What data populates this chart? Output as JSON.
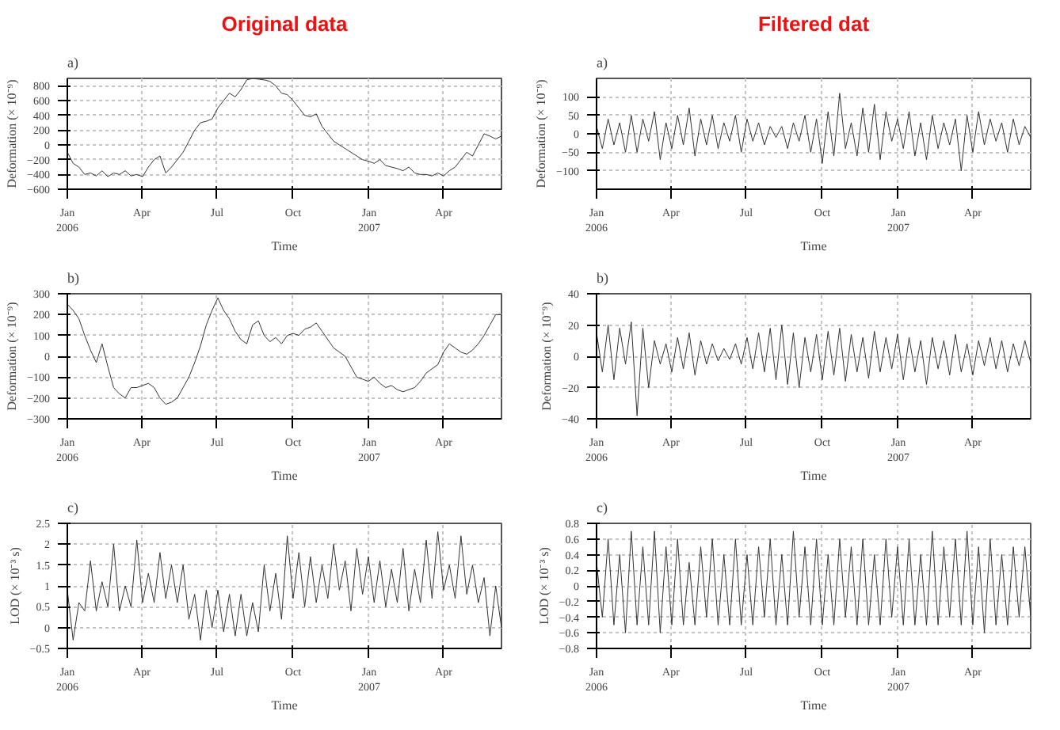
{
  "chart_data": [
    {
      "type": "line",
      "title": "Original data",
      "annotations": [
        "a)"
      ],
      "xlabel": "Time",
      "ylabel": "Deformation (× 10⁻⁹)",
      "color": "#333333",
      "grid": true,
      "line_style": "solid",
      "xlim": [
        "2006-01-01",
        "2007-06-10"
      ],
      "xticks": [
        {
          "value": "2006-01-01",
          "label": "Jan\n2006"
        },
        {
          "value": "2006-04-01",
          "label": "Apr"
        },
        {
          "value": "2006-07-01",
          "label": "Jul"
        },
        {
          "value": "2006-10-01",
          "label": "Oct"
        },
        {
          "value": "2007-01-01",
          "label": "Jan\n2007"
        },
        {
          "value": "2007-04-01",
          "label": "Apr"
        }
      ],
      "ylim": [
        -600,
        900
      ],
      "yticks": [
        -600,
        -400,
        -200,
        0,
        200,
        400,
        600,
        800
      ],
      "x": [
        "2006-01-01",
        "2006-01-08",
        "2006-01-15",
        "2006-01-22",
        "2006-01-29",
        "2006-02-05",
        "2006-02-12",
        "2006-02-19",
        "2006-02-26",
        "2006-03-05",
        "2006-03-12",
        "2006-03-19",
        "2006-03-26",
        "2006-04-02",
        "2006-04-09",
        "2006-04-16",
        "2006-04-23",
        "2006-04-30",
        "2006-05-07",
        "2006-05-14",
        "2006-05-21",
        "2006-05-28",
        "2006-06-04",
        "2006-06-11",
        "2006-06-18",
        "2006-06-25",
        "2006-07-02",
        "2006-07-09",
        "2006-07-16",
        "2006-07-23",
        "2006-07-30",
        "2006-08-06",
        "2006-08-13",
        "2006-08-20",
        "2006-08-27",
        "2006-09-03",
        "2006-09-10",
        "2006-09-17",
        "2006-09-24",
        "2006-10-01",
        "2006-10-08",
        "2006-10-15",
        "2006-10-22",
        "2006-10-29",
        "2006-11-05",
        "2006-11-12",
        "2006-11-19",
        "2006-11-26",
        "2006-12-03",
        "2006-12-10",
        "2006-12-17",
        "2006-12-24",
        "2006-12-31",
        "2007-01-07",
        "2007-01-14",
        "2007-01-21",
        "2007-01-28",
        "2007-02-04",
        "2007-02-11",
        "2007-02-18",
        "2007-02-25",
        "2007-03-04",
        "2007-03-11",
        "2007-03-18",
        "2007-03-25",
        "2007-04-01",
        "2007-04-08",
        "2007-04-15",
        "2007-04-22",
        "2007-04-29",
        "2007-05-06",
        "2007-05-13",
        "2007-05-20",
        "2007-05-27",
        "2007-06-03",
        "2007-06-10"
      ],
      "values": [
        -100,
        -250,
        -300,
        -400,
        -380,
        -420,
        -350,
        -430,
        -380,
        -400,
        -350,
        -420,
        -400,
        -430,
        -300,
        -200,
        -150,
        -380,
        -300,
        -200,
        -100,
        50,
        200,
        300,
        320,
        350,
        500,
        600,
        700,
        650,
        750,
        880,
        900,
        890,
        880,
        860,
        800,
        700,
        680,
        600,
        500,
        400,
        380,
        420,
        250,
        150,
        50,
        0,
        -50,
        -100,
        -150,
        -200,
        -220,
        -250,
        -200,
        -280,
        -300,
        -320,
        -350,
        -300,
        -380,
        -400,
        -400,
        -420,
        -380,
        -420,
        -350,
        -300,
        -200,
        -100,
        -150,
        0,
        150,
        120,
        80,
        120
      ]
    },
    {
      "type": "line",
      "annotations": [
        "b)"
      ],
      "xlabel": "Time",
      "ylabel": "Deformation (× 10⁻⁹)",
      "color": "#333333",
      "grid": true,
      "line_style": "solid",
      "xlim": [
        "2006-01-01",
        "2007-06-10"
      ],
      "xticks": [
        {
          "value": "2006-01-01",
          "label": "Jan\n2006"
        },
        {
          "value": "2006-04-01",
          "label": "Apr"
        },
        {
          "value": "2006-07-01",
          "label": "Jul"
        },
        {
          "value": "2006-10-01",
          "label": "Oct"
        },
        {
          "value": "2007-01-01",
          "label": "Jan\n2007"
        },
        {
          "value": "2007-04-01",
          "label": "Apr"
        }
      ],
      "ylim": [
        -300,
        300
      ],
      "yticks": [
        -300,
        -200,
        -100,
        0,
        100,
        200,
        300
      ],
      "x": [
        "2006-01-01",
        "2006-01-08",
        "2006-01-15",
        "2006-01-22",
        "2006-01-29",
        "2006-02-05",
        "2006-02-12",
        "2006-02-19",
        "2006-02-26",
        "2006-03-05",
        "2006-03-12",
        "2006-03-19",
        "2006-03-26",
        "2006-04-02",
        "2006-04-09",
        "2006-04-16",
        "2006-04-23",
        "2006-04-30",
        "2006-05-07",
        "2006-05-14",
        "2006-05-21",
        "2006-05-28",
        "2006-06-04",
        "2006-06-11",
        "2006-06-18",
        "2006-06-25",
        "2006-07-02",
        "2006-07-09",
        "2006-07-16",
        "2006-07-23",
        "2006-07-30",
        "2006-08-06",
        "2006-08-13",
        "2006-08-20",
        "2006-08-27",
        "2006-09-03",
        "2006-09-10",
        "2006-09-17",
        "2006-09-24",
        "2006-10-01",
        "2006-10-08",
        "2006-10-15",
        "2006-10-22",
        "2006-10-29",
        "2006-11-05",
        "2006-11-12",
        "2006-11-19",
        "2006-11-26",
        "2006-12-03",
        "2006-12-10",
        "2006-12-17",
        "2006-12-24",
        "2006-12-31",
        "2007-01-07",
        "2007-01-14",
        "2007-01-21",
        "2007-01-28",
        "2007-02-04",
        "2007-02-11",
        "2007-02-18",
        "2007-02-25",
        "2007-03-04",
        "2007-03-11",
        "2007-03-18",
        "2007-03-25",
        "2007-04-01",
        "2007-04-08",
        "2007-04-15",
        "2007-04-22",
        "2007-04-29",
        "2007-05-06",
        "2007-05-13",
        "2007-05-20",
        "2007-05-27",
        "2007-06-03",
        "2007-06-10"
      ],
      "values": [
        250,
        220,
        180,
        100,
        30,
        -30,
        60,
        -50,
        -150,
        -180,
        -200,
        -150,
        -150,
        -140,
        -130,
        -150,
        -200,
        -230,
        -220,
        -200,
        -150,
        -100,
        -30,
        50,
        150,
        220,
        280,
        220,
        180,
        120,
        80,
        60,
        150,
        170,
        100,
        70,
        90,
        60,
        100,
        110,
        100,
        130,
        140,
        160,
        120,
        80,
        40,
        20,
        0,
        -50,
        -100,
        -110,
        -120,
        -100,
        -130,
        -150,
        -140,
        -160,
        -170,
        -160,
        -150,
        -120,
        -80,
        -60,
        -40,
        20,
        60,
        40,
        20,
        10,
        30,
        60,
        100,
        150,
        200,
        200
      ]
    },
    {
      "type": "line",
      "annotations": [
        "c)"
      ],
      "xlabel": "Time",
      "ylabel": "LOD (× 10⁻³ s)",
      "color": "#333333",
      "grid": true,
      "line_style": "solid",
      "xlim": [
        "2006-01-01",
        "2007-06-10"
      ],
      "xticks": [
        {
          "value": "2006-01-01",
          "label": "Jan\n2006"
        },
        {
          "value": "2006-04-01",
          "label": "Apr"
        },
        {
          "value": "2006-07-01",
          "label": "Jul"
        },
        {
          "value": "2006-10-01",
          "label": "Oct"
        },
        {
          "value": "2007-01-01",
          "label": "Jan\n2007"
        },
        {
          "value": "2007-04-01",
          "label": "Apr"
        }
      ],
      "ylim": [
        -0.5,
        2.5
      ],
      "yticks": [
        -0.5,
        0,
        0.5,
        1,
        1.5,
        2,
        2.5
      ],
      "x": [
        "2006-01-01",
        "2006-01-08",
        "2006-01-15",
        "2006-01-22",
        "2006-01-29",
        "2006-02-05",
        "2006-02-12",
        "2006-02-19",
        "2006-02-26",
        "2006-03-05",
        "2006-03-12",
        "2006-03-19",
        "2006-03-26",
        "2006-04-02",
        "2006-04-09",
        "2006-04-16",
        "2006-04-23",
        "2006-04-30",
        "2006-05-07",
        "2006-05-14",
        "2006-05-21",
        "2006-05-28",
        "2006-06-04",
        "2006-06-11",
        "2006-06-18",
        "2006-06-25",
        "2006-07-02",
        "2006-07-09",
        "2006-07-16",
        "2006-07-23",
        "2006-07-30",
        "2006-08-06",
        "2006-08-13",
        "2006-08-20",
        "2006-08-27",
        "2006-09-03",
        "2006-09-10",
        "2006-09-17",
        "2006-09-24",
        "2006-10-01",
        "2006-10-08",
        "2006-10-15",
        "2006-10-22",
        "2006-10-29",
        "2006-11-05",
        "2006-11-12",
        "2006-11-19",
        "2006-11-26",
        "2006-12-03",
        "2006-12-10",
        "2006-12-17",
        "2006-12-24",
        "2006-12-31",
        "2007-01-07",
        "2007-01-14",
        "2007-01-21",
        "2007-01-28",
        "2007-02-04",
        "2007-02-11",
        "2007-02-18",
        "2007-02-25",
        "2007-03-04",
        "2007-03-11",
        "2007-03-18",
        "2007-03-25",
        "2007-04-01",
        "2007-04-08",
        "2007-04-15",
        "2007-04-22",
        "2007-04-29",
        "2007-05-06",
        "2007-05-13",
        "2007-05-20",
        "2007-05-27",
        "2007-06-03",
        "2007-06-10"
      ],
      "values": [
        0.9,
        -0.3,
        0.6,
        0.4,
        1.6,
        0.4,
        1.1,
        0.5,
        2.0,
        0.4,
        1.0,
        0.5,
        2.1,
        0.6,
        1.3,
        0.6,
        1.8,
        0.7,
        1.5,
        0.6,
        1.5,
        0.2,
        0.8,
        -0.3,
        0.9,
        0.0,
        0.9,
        -0.1,
        0.8,
        -0.2,
        0.8,
        -0.2,
        0.6,
        -0.1,
        1.5,
        0.4,
        1.3,
        0.2,
        2.2,
        0.7,
        1.8,
        0.5,
        1.7,
        0.6,
        1.5,
        0.7,
        2.0,
        0.9,
        1.6,
        0.4,
        1.9,
        0.8,
        1.7,
        0.6,
        1.6,
        0.5,
        1.4,
        0.6,
        1.9,
        0.4,
        1.4,
        0.6,
        2.1,
        0.7,
        2.3,
        0.9,
        1.5,
        0.7,
        2.2,
        0.8,
        1.5,
        0.6,
        1.2,
        -0.2,
        1.0,
        0.0
      ]
    },
    {
      "type": "line",
      "title": "Filtered dat",
      "annotations": [
        "a)"
      ],
      "xlabel": "Time",
      "ylabel": "Deformation (× 10⁻⁹)",
      "color": "#333333",
      "grid": true,
      "line_style": "solid",
      "xlim": [
        "2006-01-01",
        "2007-06-10"
      ],
      "xticks": [
        {
          "value": "2006-01-01",
          "label": "Jan\n2006"
        },
        {
          "value": "2006-04-01",
          "label": "Apr"
        },
        {
          "value": "2006-07-01",
          "label": "Jul"
        },
        {
          "value": "2006-10-01",
          "label": "Oct"
        },
        {
          "value": "2007-01-01",
          "label": "Jan\n2007"
        },
        {
          "value": "2007-04-01",
          "label": "Apr"
        }
      ],
      "ylim": [
        -150,
        150
      ],
      "yticks": [
        -100,
        -50,
        0,
        50,
        100
      ],
      "x": [
        "2006-01-01",
        "2006-01-08",
        "2006-01-15",
        "2006-01-22",
        "2006-01-29",
        "2006-02-05",
        "2006-02-12",
        "2006-02-19",
        "2006-02-26",
        "2006-03-05",
        "2006-03-12",
        "2006-03-19",
        "2006-03-26",
        "2006-04-02",
        "2006-04-09",
        "2006-04-16",
        "2006-04-23",
        "2006-04-30",
        "2006-05-07",
        "2006-05-14",
        "2006-05-21",
        "2006-05-28",
        "2006-06-04",
        "2006-06-11",
        "2006-06-18",
        "2006-06-25",
        "2006-07-02",
        "2006-07-09",
        "2006-07-16",
        "2006-07-23",
        "2006-07-30",
        "2006-08-06",
        "2006-08-13",
        "2006-08-20",
        "2006-08-27",
        "2006-09-03",
        "2006-09-10",
        "2006-09-17",
        "2006-09-24",
        "2006-10-01",
        "2006-10-08",
        "2006-10-15",
        "2006-10-22",
        "2006-10-29",
        "2006-11-05",
        "2006-11-12",
        "2006-11-19",
        "2006-11-26",
        "2006-12-03",
        "2006-12-10",
        "2006-12-17",
        "2006-12-24",
        "2006-12-31",
        "2007-01-07",
        "2007-01-14",
        "2007-01-21",
        "2007-01-28",
        "2007-02-04",
        "2007-02-11",
        "2007-02-18",
        "2007-02-25",
        "2007-03-04",
        "2007-03-11",
        "2007-03-18",
        "2007-03-25",
        "2007-04-01",
        "2007-04-08",
        "2007-04-15",
        "2007-04-22",
        "2007-04-29",
        "2007-05-06",
        "2007-05-13",
        "2007-05-20",
        "2007-05-27",
        "2007-06-03",
        "2007-06-10"
      ],
      "values": [
        20,
        -40,
        40,
        -30,
        30,
        -50,
        50,
        -50,
        40,
        -20,
        60,
        -70,
        30,
        -40,
        50,
        -30,
        70,
        -60,
        40,
        -30,
        50,
        -40,
        30,
        -20,
        50,
        -50,
        40,
        -20,
        30,
        -30,
        20,
        -10,
        20,
        -40,
        30,
        -20,
        50,
        -50,
        40,
        -80,
        60,
        -60,
        110,
        -40,
        30,
        -60,
        70,
        -50,
        80,
        -70,
        60,
        -20,
        40,
        -40,
        60,
        -60,
        30,
        -70,
        50,
        -40,
        30,
        -30,
        40,
        -100,
        50,
        -50,
        60,
        -30,
        40,
        -20,
        30,
        -50,
        40,
        -30,
        20,
        -10
      ]
    },
    {
      "type": "line",
      "annotations": [
        "b)"
      ],
      "xlabel": "Time",
      "ylabel": "Deformation (× 10⁻⁹)",
      "color": "#333333",
      "grid": true,
      "line_style": "solid",
      "xlim": [
        "2006-01-01",
        "2007-06-10"
      ],
      "xticks": [
        {
          "value": "2006-01-01",
          "label": "Jan\n2006"
        },
        {
          "value": "2006-04-01",
          "label": "Apr"
        },
        {
          "value": "2006-07-01",
          "label": "Jul"
        },
        {
          "value": "2006-10-01",
          "label": "Oct"
        },
        {
          "value": "2007-01-01",
          "label": "Jan\n2007"
        },
        {
          "value": "2007-04-01",
          "label": "Apr"
        }
      ],
      "ylim": [
        -40,
        40
      ],
      "yticks": [
        -40,
        -20,
        0,
        20,
        40
      ],
      "x": [
        "2006-01-01",
        "2006-01-08",
        "2006-01-15",
        "2006-01-22",
        "2006-01-29",
        "2006-02-05",
        "2006-02-12",
        "2006-02-19",
        "2006-02-26",
        "2006-03-05",
        "2006-03-12",
        "2006-03-19",
        "2006-03-26",
        "2006-04-02",
        "2006-04-09",
        "2006-04-16",
        "2006-04-23",
        "2006-04-30",
        "2006-05-07",
        "2006-05-14",
        "2006-05-21",
        "2006-05-28",
        "2006-06-04",
        "2006-06-11",
        "2006-06-18",
        "2006-06-25",
        "2006-07-02",
        "2006-07-09",
        "2006-07-16",
        "2006-07-23",
        "2006-07-30",
        "2006-08-06",
        "2006-08-13",
        "2006-08-20",
        "2006-08-27",
        "2006-09-03",
        "2006-09-10",
        "2006-09-17",
        "2006-09-24",
        "2006-10-01",
        "2006-10-08",
        "2006-10-15",
        "2006-10-22",
        "2006-10-29",
        "2006-11-05",
        "2006-11-12",
        "2006-11-19",
        "2006-11-26",
        "2006-12-03",
        "2006-12-10",
        "2006-12-17",
        "2006-12-24",
        "2006-12-31",
        "2007-01-07",
        "2007-01-14",
        "2007-01-21",
        "2007-01-28",
        "2007-02-04",
        "2007-02-11",
        "2007-02-18",
        "2007-02-25",
        "2007-03-04",
        "2007-03-11",
        "2007-03-18",
        "2007-03-25",
        "2007-04-01",
        "2007-04-08",
        "2007-04-15",
        "2007-04-22",
        "2007-04-29",
        "2007-05-06",
        "2007-05-13",
        "2007-05-20",
        "2007-05-27",
        "2007-06-03",
        "2007-06-10"
      ],
      "values": [
        15,
        -10,
        20,
        -15,
        18,
        -5,
        22,
        -38,
        18,
        -20,
        10,
        -5,
        8,
        -10,
        12,
        -8,
        15,
        -12,
        10,
        -5,
        8,
        -3,
        5,
        -2,
        8,
        -5,
        12,
        -8,
        15,
        -10,
        18,
        -15,
        20,
        -18,
        15,
        -20,
        12,
        -10,
        14,
        -15,
        16,
        -12,
        18,
        -16,
        14,
        -10,
        12,
        -14,
        16,
        -10,
        12,
        -8,
        14,
        -15,
        12,
        -10,
        10,
        -18,
        12,
        -8,
        10,
        -12,
        14,
        -10,
        8,
        -12,
        10,
        -6,
        12,
        -8,
        10,
        -10,
        8,
        -6,
        10,
        -4
      ]
    },
    {
      "type": "line",
      "annotations": [
        "c)"
      ],
      "xlabel": "Time",
      "ylabel": "LOD (× 10⁻³ s)",
      "color": "#333333",
      "grid": true,
      "line_style": "solid",
      "xlim": [
        "2006-01-01",
        "2007-06-10"
      ],
      "xticks": [
        {
          "value": "2006-01-01",
          "label": "Jan\n2006"
        },
        {
          "value": "2006-04-01",
          "label": "Apr"
        },
        {
          "value": "2006-07-01",
          "label": "Jul"
        },
        {
          "value": "2006-10-01",
          "label": "Oct"
        },
        {
          "value": "2007-01-01",
          "label": "Jan\n2007"
        },
        {
          "value": "2007-04-01",
          "label": "Apr"
        }
      ],
      "ylim": [
        -0.8,
        0.8
      ],
      "yticks": [
        -0.8,
        -0.6,
        -0.4,
        -0.2,
        0,
        0.2,
        0.4,
        0.6,
        0.8
      ],
      "x": [
        "2006-01-01",
        "2006-01-08",
        "2006-01-15",
        "2006-01-22",
        "2006-01-29",
        "2006-02-05",
        "2006-02-12",
        "2006-02-19",
        "2006-02-26",
        "2006-03-05",
        "2006-03-12",
        "2006-03-19",
        "2006-03-26",
        "2006-04-02",
        "2006-04-09",
        "2006-04-16",
        "2006-04-23",
        "2006-04-30",
        "2006-05-07",
        "2006-05-14",
        "2006-05-21",
        "2006-05-28",
        "2006-06-04",
        "2006-06-11",
        "2006-06-18",
        "2006-06-25",
        "2006-07-02",
        "2006-07-09",
        "2006-07-16",
        "2006-07-23",
        "2006-07-30",
        "2006-08-06",
        "2006-08-13",
        "2006-08-20",
        "2006-08-27",
        "2006-09-03",
        "2006-09-10",
        "2006-09-17",
        "2006-09-24",
        "2006-10-01",
        "2006-10-08",
        "2006-10-15",
        "2006-10-22",
        "2006-10-29",
        "2006-11-05",
        "2006-11-12",
        "2006-11-19",
        "2006-11-26",
        "2006-12-03",
        "2006-12-10",
        "2006-12-17",
        "2006-12-24",
        "2006-12-31",
        "2007-01-07",
        "2007-01-14",
        "2007-01-21",
        "2007-01-28",
        "2007-02-04",
        "2007-02-11",
        "2007-02-18",
        "2007-02-25",
        "2007-03-04",
        "2007-03-11",
        "2007-03-18",
        "2007-03-25",
        "2007-04-01",
        "2007-04-08",
        "2007-04-15",
        "2007-04-22",
        "2007-04-29",
        "2007-05-06",
        "2007-05-13",
        "2007-05-20",
        "2007-05-27",
        "2007-06-03",
        "2007-06-10"
      ],
      "values": [
        0.3,
        -0.4,
        0.6,
        -0.5,
        0.4,
        -0.6,
        0.7,
        -0.5,
        0.5,
        -0.5,
        0.7,
        -0.6,
        0.5,
        -0.5,
        0.6,
        -0.5,
        0.3,
        -0.5,
        0.5,
        -0.4,
        0.6,
        -0.5,
        0.4,
        -0.5,
        0.6,
        -0.5,
        0.4,
        -0.5,
        0.5,
        -0.4,
        0.6,
        -0.5,
        0.4,
        -0.5,
        0.7,
        -0.4,
        0.5,
        -0.5,
        0.6,
        -0.5,
        0.4,
        -0.5,
        0.6,
        -0.4,
        0.5,
        -0.5,
        0.6,
        -0.5,
        0.4,
        -0.5,
        0.6,
        -0.4,
        0.5,
        -0.5,
        0.6,
        -0.5,
        0.4,
        -0.5,
        0.7,
        -0.5,
        0.5,
        -0.4,
        0.6,
        -0.5,
        0.7,
        -0.5,
        0.5,
        -0.6,
        0.6,
        -0.5,
        0.4,
        -0.5,
        0.5,
        -0.4,
        0.5,
        -0.4
      ]
    }
  ]
}
